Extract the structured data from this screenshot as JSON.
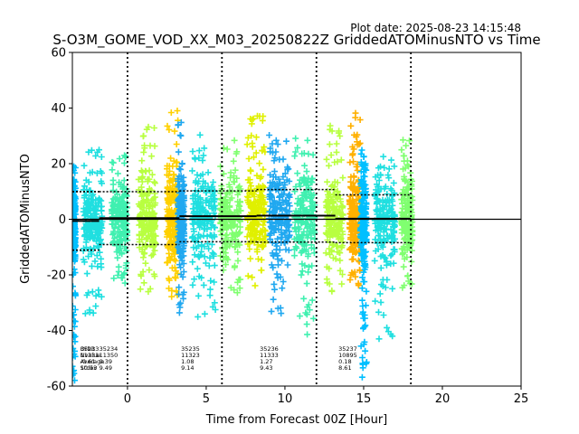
{
  "chart_data": {
    "type": "scatter",
    "title": "S-O3M_GOME_VOD_XX_M03_20250822Z GriddedATOMinusNTO vs Time",
    "plot_date": "Plot date: 2025-08-23 14:15:48",
    "xlabel": "Time from Forecast 00Z [Hour]",
    "ylabel": "GriddedATOMinusNTO",
    "xlim": [
      -3.5,
      25
    ],
    "ylim": [
      -60,
      60
    ],
    "x_ticks": [
      0,
      5,
      10,
      15,
      20,
      25
    ],
    "y_ticks": [
      -60,
      -40,
      -20,
      0,
      20,
      40,
      60
    ],
    "grid": false,
    "zero_line": 0,
    "vertical_lines": [
      0,
      6,
      12,
      18
    ],
    "stats_header": [
      "Orbit",
      "Nvalue",
      "Average",
      "Stdev"
    ],
    "colors": {
      "c1": "#00bfff",
      "c2": "#1fdfe0",
      "c3": "#40f0b0",
      "c4": "#80ff70",
      "c5": "#b8ff40",
      "c6": "#e0f000",
      "c7": "#ffd000",
      "c8": "#ffb000",
      "c9": "#20a8f0",
      "mean_line": "#000000",
      "stdev_line": "#000000"
    },
    "series": [
      {
        "color_key": "c1",
        "x_start": -3.5,
        "x_end": -3.3,
        "y_min": -58,
        "y_max": 20,
        "mean": -0.6
      },
      {
        "color_key": "c2",
        "x_start": -2.8,
        "x_end": -1.6,
        "y_min": -34,
        "y_max": 27,
        "mean": -0.6
      },
      {
        "color_key": "c3",
        "x_start": -1.0,
        "x_end": 0.0,
        "y_min": -26,
        "y_max": 28,
        "mean": 0.4
      },
      {
        "color_key": "c5",
        "x_start": 0.7,
        "x_end": 1.8,
        "y_min": -28,
        "y_max": 35,
        "mean": 0.4
      },
      {
        "color_key": "c7",
        "x_start": 2.5,
        "x_end": 3.2,
        "y_min": -31,
        "y_max": 40,
        "mean": 0.4
      },
      {
        "color_key": "c9",
        "x_start": 3.2,
        "x_end": 3.6,
        "y_min": -34,
        "y_max": 35,
        "mean": 1.1
      },
      {
        "color_key": "c2",
        "x_start": 4.1,
        "x_end": 5.6,
        "y_min": -36,
        "y_max": 31,
        "mean": 1.1
      },
      {
        "color_key": "c4",
        "x_start": 5.9,
        "x_end": 7.2,
        "y_min": -27,
        "y_max": 29,
        "mean": 1.1
      },
      {
        "color_key": "c6",
        "x_start": 7.6,
        "x_end": 8.8,
        "y_min": -25,
        "y_max": 38,
        "mean": 1.3
      },
      {
        "color_key": "c9",
        "x_start": 9.0,
        "x_end": 10.3,
        "y_min": -35,
        "y_max": 32,
        "mean": 1.3
      },
      {
        "color_key": "c3",
        "x_start": 10.6,
        "x_end": 11.9,
        "y_min": -45,
        "y_max": 30,
        "mean": 1.3
      },
      {
        "color_key": "c5",
        "x_start": 12.6,
        "x_end": 13.7,
        "y_min": -26,
        "y_max": 34,
        "mean": 0.2
      },
      {
        "color_key": "c8",
        "x_start": 14.1,
        "x_end": 14.8,
        "y_min": -24,
        "y_max": 40,
        "mean": 0.2
      },
      {
        "color_key": "c1",
        "x_start": 14.8,
        "x_end": 15.2,
        "y_min": -57,
        "y_max": 25,
        "mean": 0.2
      },
      {
        "color_key": "c2",
        "x_start": 15.7,
        "x_end": 17.0,
        "y_min": -44,
        "y_max": 25,
        "mean": 0.2
      },
      {
        "color_key": "c4",
        "x_start": 17.4,
        "x_end": 18.1,
        "y_min": -28,
        "y_max": 29,
        "mean": 0.2
      }
    ],
    "stdev_segments": [
      {
        "x_start": -3.5,
        "x_end": -1.8,
        "upper": -11.1,
        "lower": -11.1
      },
      {
        "x_start": -3.5,
        "x_end": -1.8,
        "upper": 9.9,
        "lower": 9.9
      },
      {
        "x_start": -1.8,
        "x_end": 3.3,
        "upper": 9.9,
        "lower": -9.1
      },
      {
        "x_start": 3.3,
        "x_end": 8.2,
        "upper": 10.2,
        "lower": -8.1
      },
      {
        "x_start": 8.2,
        "x_end": 13.2,
        "upper": 10.7,
        "lower": -8.2
      },
      {
        "x_start": 13.2,
        "x_end": 18.0,
        "upper": 8.8,
        "lower": -8.4
      }
    ],
    "mean_segments": [
      {
        "x_start": -3.5,
        "x_end": -1.8,
        "y": -0.6
      },
      {
        "x_start": -1.8,
        "x_end": 3.3,
        "y": 0.4
      },
      {
        "x_start": 3.3,
        "x_end": 8.2,
        "y": 1.1
      },
      {
        "x_start": 8.2,
        "x_end": 13.2,
        "y": 1.3
      },
      {
        "x_start": 13.2,
        "x_end": 18.0,
        "y": 0.2
      }
    ],
    "orbit_stats": [
      {
        "x": -3.0,
        "orbit": "35233",
        "nvalue": "11331",
        "average": "-0.61",
        "stdev": "10.53"
      },
      {
        "x": -1.8,
        "orbit": "35234",
        "nvalue": "11350",
        "average": "0.39",
        "stdev": "9.49"
      },
      {
        "x": 3.4,
        "orbit": "35235",
        "nvalue": "11323",
        "average": "1.08",
        "stdev": "9.14"
      },
      {
        "x": 8.4,
        "orbit": "35236",
        "nvalue": "11333",
        "average": "1.27",
        "stdev": "9.43"
      },
      {
        "x": 13.4,
        "orbit": "35237",
        "nvalue": "10895",
        "average": "0.18",
        "stdev": "8.61"
      }
    ]
  }
}
